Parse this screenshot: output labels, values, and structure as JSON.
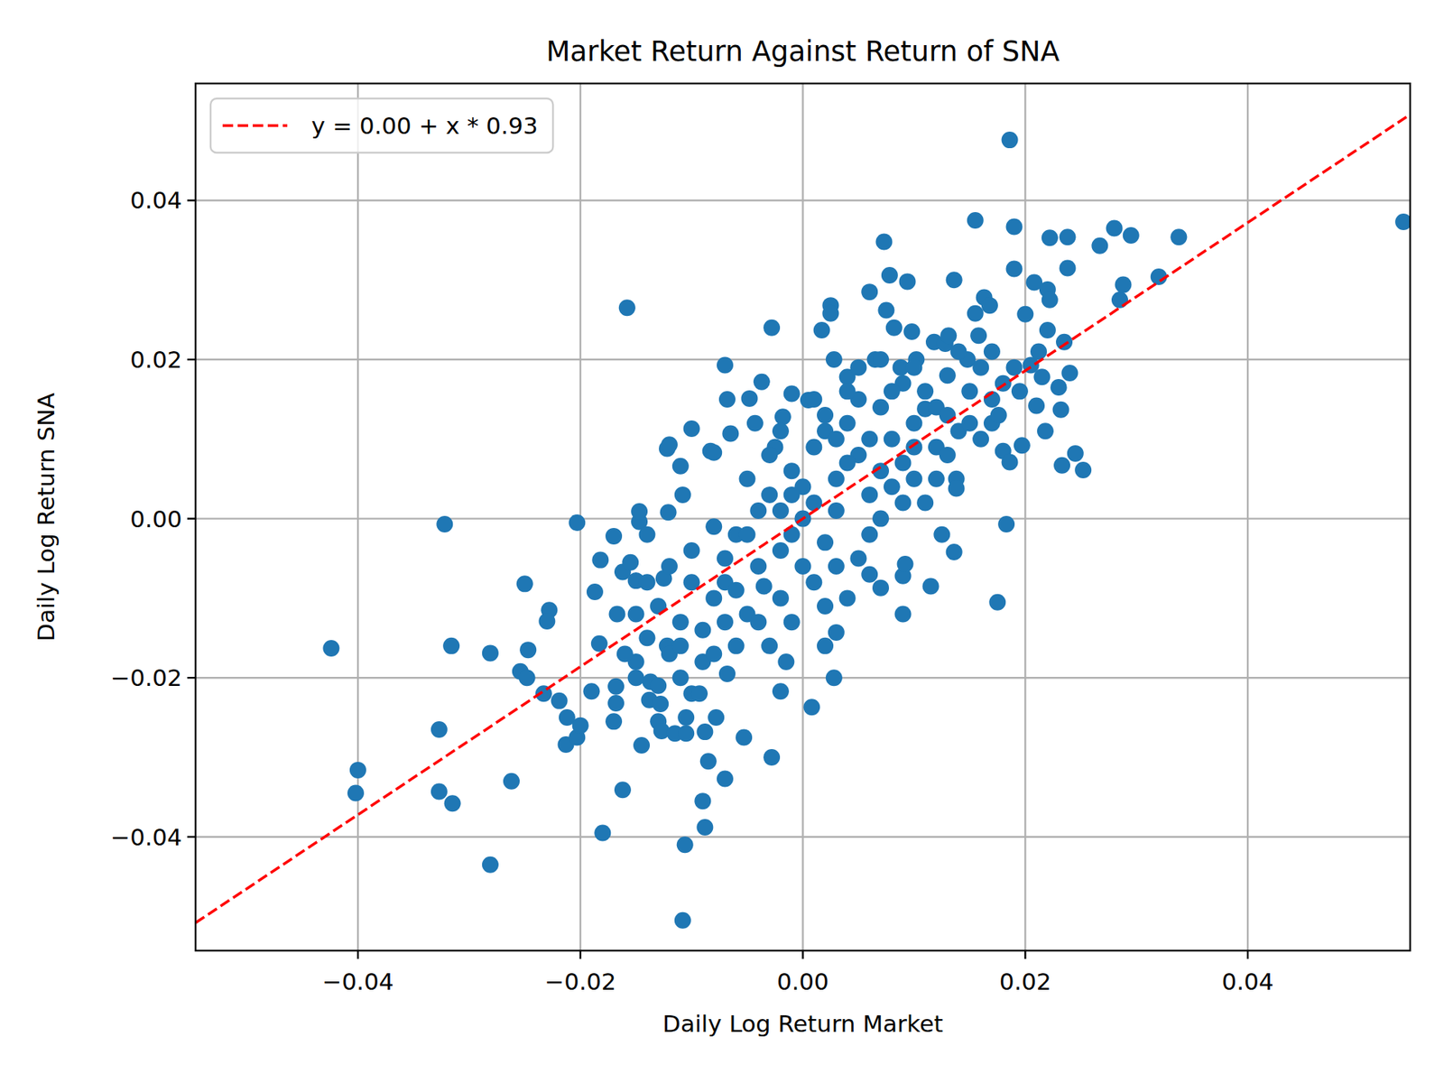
{
  "chart_data": {
    "type": "scatter",
    "title": "Market Return Against Return of SNA",
    "x_label": "Daily Log Return Market",
    "y_label": "Daily Log Return SNA",
    "xlim": [
      -0.0546,
      0.0546
    ],
    "ylim": [
      -0.0543,
      0.0547
    ],
    "xticks": [
      {
        "value": -0.04,
        "label": "−0.04"
      },
      {
        "value": -0.02,
        "label": "−0.02"
      },
      {
        "value": 0,
        "label": "0.00"
      },
      0.02,
      0.04
    ],
    "yticks": [
      {
        "value": -0.04,
        "label": "−0.04"
      },
      {
        "value": -0.02,
        "label": "−0.02"
      },
      {
        "value": 0,
        "label": "0.00"
      },
      0.02,
      0.04
    ],
    "grid": true,
    "legend": "upper left",
    "color": "#1f77b4",
    "marker": "circle",
    "x": [
      0.054,
      0.0186,
      -0.0158,
      -0.0424,
      -0.0322,
      -0.04,
      -0.0402,
      -0.0316,
      -0.0327,
      -0.0327,
      -0.0315,
      -0.0281,
      -0.0281,
      -0.0262,
      -0.0254,
      -0.025,
      -0.0228,
      -0.023,
      -0.0247,
      -0.0248,
      -0.0233,
      -0.0219,
      -0.0212,
      -0.0213,
      -0.0203,
      -0.02,
      -0.0203,
      -0.019,
      -0.0187,
      -0.0182,
      -0.0183,
      -0.018,
      -0.017,
      -0.0168,
      -0.0168,
      -0.017,
      -0.0167,
      -0.0162,
      -0.0162,
      -0.0155,
      -0.015,
      -0.015,
      -0.0147,
      -0.0145,
      -0.014,
      -0.0147,
      -0.0138,
      -0.0137,
      -0.013,
      -0.0127,
      -0.0128,
      -0.0125,
      -0.0122,
      -0.0121,
      -0.0122,
      -0.012,
      -0.0115,
      -0.011,
      -0.011,
      -0.0108,
      -0.0106,
      -0.0108,
      -0.0105,
      -0.0105,
      -0.01,
      -0.01,
      -0.0093,
      -0.009,
      -0.0088,
      -0.0088,
      -0.0085,
      -0.0083,
      -0.008,
      -0.0078,
      -0.007,
      -0.007,
      -0.0068,
      -0.0068,
      -0.0065,
      -0.0053,
      -0.0048,
      -0.0043,
      -0.0037,
      -0.0035,
      -0.0028,
      -0.0028,
      -0.0025,
      -0.002,
      -0.0018,
      -0.0015,
      -0.001,
      0.0005,
      0.0008,
      0.0017,
      0.0025,
      0.0025,
      0.0028,
      0.0028,
      0.002,
      0.003,
      0.004,
      0.006,
      0.0065,
      0.007,
      0.0073,
      0.0075,
      0.0078,
      0.0082,
      0.0088,
      0.009,
      0.009,
      0.0092,
      0.0094,
      0.0098,
      0.0102,
      0.011,
      0.0115,
      0.0118,
      0.0125,
      0.0128,
      0.0131,
      0.0136,
      0.0136,
      0.0138,
      0.0138,
      0.0148,
      0.0155,
      0.0155,
      0.0158,
      0.0163,
      0.0168,
      0.017,
      0.0175,
      0.0176,
      0.018,
      0.0183,
      0.0186,
      0.019,
      0.019,
      0.0195,
      0.0197,
      0.02,
      0.0205,
      0.0208,
      0.021,
      0.0212,
      0.0215,
      0.0218,
      0.022,
      0.022,
      0.0222,
      0.0222,
      0.023,
      0.0232,
      0.0233,
      0.0235,
      0.0238,
      0.0238,
      0.024,
      0.0245,
      0.0252,
      0.0267,
      0.028,
      0.0285,
      0.0288,
      0.0295,
      0.032,
      0.0338,
      -0.002,
      0.001,
      0.003,
      0.005,
      -0.004,
      -0.006,
      0.006,
      0.008,
      -0.008,
      0.002,
      -0.001,
      0.004,
      -0.003,
      0.007,
      -0.005,
      0.009,
      -0.007,
      0.01,
      -0.009,
      0,
      0.001,
      -0.002,
      0.003,
      0.005,
      -0.004,
      0.006,
      -0.006,
      0.008,
      -0.01,
      0.011,
      -0.011,
      0.012,
      -0.012,
      0.013,
      -0.013,
      0.014,
      -0.014,
      0.015,
      -0.015,
      0.016,
      -0.016,
      0.017,
      0.004,
      -0.003,
      0.002,
      -0.001,
      0.007,
      -0.008,
      0.009,
      -0.005,
      0.005,
      0.003,
      -0.002,
      0.001,
      -0.007,
      0.007,
      0.01,
      -0.01,
      0.012,
      -0.012,
      0.006,
      -0.006,
      0.004,
      -0.004,
      0.002,
      -0.001,
      0,
      0,
      0.008,
      -0.009,
      0.011,
      -0.011,
      0.013,
      -0.014,
      0.015,
      0.014,
      0.016,
      -0.013,
      0.018,
      0.019,
      0.01,
      -0.003,
      0.004,
      0.009,
      -0.007,
      0.005,
      0.006,
      -0.002,
      0.003,
      -0.005,
      0.001,
      0.002,
      -0.001,
      0.012,
      -0.008,
      0.01,
      0.013,
      -0.015,
      0.017,
      0.007
    ],
    "values": [
      0.0373,
      0.0476,
      0.0265,
      -0.0163,
      -0.0007,
      -0.0316,
      -0.0345,
      -0.016,
      -0.0265,
      -0.0343,
      -0.0358,
      -0.0169,
      -0.0435,
      -0.033,
      -0.0192,
      -0.0082,
      -0.0115,
      -0.0129,
      -0.0165,
      -0.02,
      -0.022,
      -0.0229,
      -0.025,
      -0.0284,
      -0.0275,
      -0.026,
      -0.0005,
      -0.0217,
      -0.0092,
      -0.0052,
      -0.0157,
      -0.0395,
      -0.0022,
      -0.0211,
      -0.0232,
      -0.0255,
      -0.012,
      -0.0341,
      -0.0067,
      -0.0055,
      -0.018,
      -0.0078,
      -0.0004,
      -0.0285,
      -0.002,
      0.0009,
      -0.0228,
      -0.0205,
      -0.0255,
      -0.0267,
      -0.0233,
      -0.0075,
      -0.016,
      0.0008,
      0.0088,
      0.0093,
      -0.027,
      -0.02,
      0.0066,
      0.003,
      -0.041,
      -0.0505,
      -0.027,
      -0.025,
      -0.022,
      0.0113,
      -0.022,
      -0.0355,
      -0.0388,
      -0.0268,
      -0.0305,
      0.0085,
      0.0083,
      -0.025,
      -0.0327,
      0.0193,
      0.015,
      -0.0195,
      0.0107,
      -0.0275,
      0.0151,
      0.012,
      0.0172,
      -0.0085,
      0.024,
      -0.03,
      0.009,
      -0.0217,
      0.0128,
      -0.018,
      0.0157,
      0.0149,
      -0.0237,
      0.0237,
      0.0268,
      0.0258,
      0.02,
      -0.02,
      -0.016,
      -0.0143,
      0.0178,
      0.0285,
      0.02,
      -0.0087,
      0.0348,
      0.0262,
      0.0306,
      0.024,
      0.019,
      -0.0072,
      -0.012,
      -0.0057,
      0.0298,
      0.0235,
      0.02,
      0.0138,
      -0.0085,
      0.0222,
      -0.002,
      0.022,
      0.023,
      0.03,
      -0.0042,
      0.005,
      0.0038,
      0.02,
      0.0375,
      0.0258,
      0.023,
      0.0278,
      0.0268,
      0.012,
      -0.0105,
      0.013,
      0.0085,
      -0.0007,
      0.0071,
      0.0367,
      0.0314,
      0.016,
      0.0092,
      0.0257,
      0.0193,
      0.0297,
      0.0142,
      0.021,
      0.0178,
      0.011,
      0.0288,
      0.0237,
      0.0275,
      0.0353,
      0.0165,
      0.0137,
      0.0067,
      0.0222,
      0.0354,
      0.0315,
      0.0183,
      0.0082,
      0.0061,
      0.0343,
      0.0365,
      0.0275,
      0.0294,
      0.0356,
      0.0304,
      0.0354,
      -0.004,
      0.002,
      0.005,
      0.008,
      -0.006,
      -0.002,
      0.003,
      0.01,
      -0.01,
      -0.003,
      0.006,
      0.012,
      0.003,
      0.014,
      -0.012,
      0.007,
      -0.005,
      0.012,
      -0.014,
      0,
      0.009,
      -0.01,
      -0.006,
      0.015,
      0.001,
      -0.002,
      -0.016,
      0.004,
      -0.008,
      0.016,
      -0.013,
      0.009,
      -0.017,
      0.018,
      -0.011,
      0.011,
      -0.015,
      0.016,
      -0.012,
      0.019,
      -0.017,
      0.015,
      -0.01,
      0.008,
      0.011,
      -0.013,
      0.02,
      -0.001,
      0.017,
      0.005,
      -0.005,
      0.001,
      0.001,
      -0.008,
      -0.008,
      0.006,
      0.005,
      -0.004,
      0.014,
      -0.006,
      0.01,
      -0.009,
      0.007,
      -0.013,
      0.013,
      -0.002,
      0.004,
      -0.006,
      0.016,
      -0.018,
      0.002,
      -0.016,
      0.008,
      -0.008,
      0.012,
      0.021,
      0.01,
      -0.021,
      0.017,
      0.019,
      0.019,
      -0.016,
      0.016,
      0.002,
      -0.013,
      0.019,
      -0.007,
      0.011,
      0.01,
      -0.002,
      0.015,
      -0.011,
      0.003,
      0.005,
      -0.017,
      0.009,
      0.013,
      -0.02,
      0.021,
      0
    ],
    "series": [
      {
        "name": "y = 0.00 + x * 0.93",
        "type": "line",
        "color": "#ff0000",
        "line_style": "dashed",
        "x": [
          -0.0546,
          0.0546
        ],
        "values": [
          -0.0508,
          0.0508
        ]
      }
    ]
  }
}
